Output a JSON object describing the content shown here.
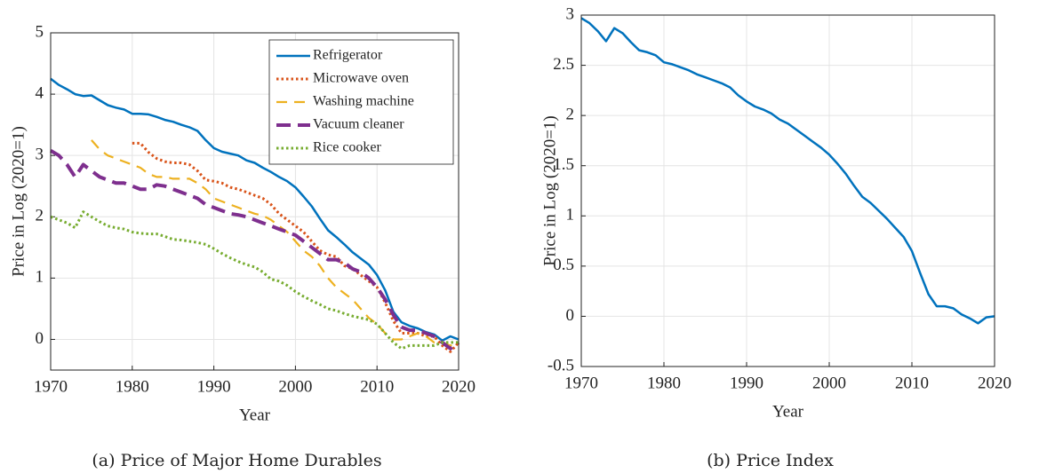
{
  "chart_data": [
    {
      "type": "line",
      "xlabel": "Year",
      "ylabel": "Price in Log (2020=1)",
      "caption": "(a) Price of Major Home Durables",
      "x": [
        1970,
        1971,
        1972,
        1973,
        1974,
        1975,
        1976,
        1977,
        1978,
        1979,
        1980,
        1981,
        1982,
        1983,
        1984,
        1985,
        1986,
        1987,
        1988,
        1989,
        1990,
        1991,
        1992,
        1993,
        1994,
        1995,
        1996,
        1997,
        1998,
        1999,
        2000,
        2001,
        2002,
        2003,
        2004,
        2005,
        2006,
        2007,
        2008,
        2009,
        2010,
        2011,
        2012,
        2013,
        2014,
        2015,
        2016,
        2017,
        2018,
        2019,
        2020
      ],
      "xlim": [
        1970,
        2020
      ],
      "xticks": [
        1970,
        1980,
        1990,
        2000,
        2010,
        2020
      ],
      "ylim": [
        -0.5,
        5
      ],
      "yticks": [
        0,
        1,
        2,
        3,
        4,
        5
      ],
      "grid": true,
      "legend": "upper right",
      "series": [
        {
          "name": "Refrigerator",
          "color": "#0072BD",
          "line_style": "solid",
          "values": [
            4.25,
            4.15,
            4.08,
            4.0,
            3.97,
            3.98,
            3.9,
            3.82,
            3.78,
            3.75,
            3.68,
            3.68,
            3.67,
            3.63,
            3.58,
            3.55,
            3.5,
            3.46,
            3.4,
            3.25,
            3.12,
            3.06,
            3.03,
            3.0,
            2.92,
            2.88,
            2.8,
            2.73,
            2.65,
            2.58,
            2.48,
            2.33,
            2.17,
            1.97,
            1.78,
            1.67,
            1.55,
            1.42,
            1.32,
            1.22,
            1.05,
            0.8,
            0.45,
            0.28,
            0.22,
            0.18,
            0.12,
            0.08,
            -0.02,
            0.05,
            0.0
          ]
        },
        {
          "name": "Microwave oven",
          "color": "#D95319",
          "line_style": "dotted",
          "values": [
            null,
            null,
            null,
            null,
            null,
            null,
            null,
            null,
            null,
            null,
            3.2,
            3.2,
            3.05,
            2.95,
            2.9,
            2.88,
            2.88,
            2.85,
            2.75,
            2.6,
            2.58,
            2.55,
            2.48,
            2.45,
            2.4,
            2.35,
            2.3,
            2.2,
            2.05,
            1.95,
            1.85,
            1.75,
            1.6,
            1.45,
            1.38,
            1.35,
            1.2,
            1.15,
            1.05,
            0.95,
            0.85,
            0.6,
            0.3,
            0.1,
            0.1,
            0.1,
            0.05,
            0.05,
            -0.1,
            -0.2,
            -0.05
          ]
        },
        {
          "name": "Washing machine",
          "color": "#EDB120",
          "line_style": "dashed",
          "values": [
            null,
            null,
            null,
            null,
            null,
            3.25,
            3.1,
            3.0,
            2.95,
            2.9,
            2.85,
            2.8,
            2.7,
            2.65,
            2.65,
            2.62,
            2.62,
            2.62,
            2.55,
            2.45,
            2.3,
            2.25,
            2.2,
            2.15,
            2.1,
            2.05,
            2.02,
            1.95,
            1.85,
            1.75,
            1.6,
            1.45,
            1.35,
            1.2,
            1.0,
            0.85,
            0.75,
            0.65,
            0.5,
            0.35,
            0.25,
            0.1,
            0.0,
            0.0,
            0.05,
            0.1,
            0.05,
            -0.05,
            -0.05,
            -0.1,
            -0.05
          ]
        },
        {
          "name": "Vacuum cleaner",
          "color": "#7E2F8E",
          "line_style": "longdash",
          "values": [
            3.08,
            3.0,
            2.85,
            2.65,
            2.85,
            2.75,
            2.65,
            2.6,
            2.55,
            2.55,
            2.5,
            2.45,
            2.45,
            2.52,
            2.5,
            2.45,
            2.4,
            2.35,
            2.3,
            2.2,
            2.15,
            2.1,
            2.05,
            2.03,
            2.0,
            1.95,
            1.9,
            1.85,
            1.8,
            1.75,
            1.7,
            1.6,
            1.5,
            1.4,
            1.3,
            1.3,
            1.25,
            1.15,
            1.1,
            1.0,
            0.85,
            0.65,
            0.4,
            0.2,
            0.15,
            0.15,
            0.1,
            0.05,
            -0.05,
            -0.15,
            -0.05
          ]
        },
        {
          "name": "Rice cooker",
          "color": "#77AC30",
          "line_style": "dotted",
          "values": [
            2.0,
            1.95,
            1.9,
            1.82,
            2.08,
            2.0,
            1.92,
            1.85,
            1.82,
            1.8,
            1.75,
            1.73,
            1.72,
            1.72,
            1.68,
            1.63,
            1.62,
            1.6,
            1.58,
            1.55,
            1.48,
            1.4,
            1.33,
            1.27,
            1.22,
            1.18,
            1.1,
            0.98,
            0.95,
            0.88,
            0.78,
            0.7,
            0.63,
            0.57,
            0.5,
            0.47,
            0.42,
            0.38,
            0.35,
            0.32,
            0.25,
            0.1,
            -0.05,
            -0.15,
            -0.1,
            -0.1,
            -0.1,
            -0.1,
            -0.05,
            -0.05,
            -0.05
          ]
        }
      ]
    },
    {
      "type": "line",
      "xlabel": "Year",
      "ylabel": "Price in Log (2020=1)",
      "caption": "(b) Price Index",
      "x": [
        1970,
        1971,
        1972,
        1973,
        1974,
        1975,
        1976,
        1977,
        1978,
        1979,
        1980,
        1981,
        1982,
        1983,
        1984,
        1985,
        1986,
        1987,
        1988,
        1989,
        1990,
        1991,
        1992,
        1993,
        1994,
        1995,
        1996,
        1997,
        1998,
        1999,
        2000,
        2001,
        2002,
        2003,
        2004,
        2005,
        2006,
        2007,
        2008,
        2009,
        2010,
        2011,
        2012,
        2013,
        2014,
        2015,
        2016,
        2017,
        2018,
        2019,
        2020
      ],
      "xlim": [
        1970,
        2020
      ],
      "xticks": [
        1970,
        1980,
        1990,
        2000,
        2010,
        2020
      ],
      "ylim": [
        -0.5,
        3
      ],
      "yticks": [
        -0.5,
        0,
        0.5,
        1,
        1.5,
        2,
        2.5,
        3
      ],
      "grid": true,
      "color": "#0072BD",
      "line_style": "solid",
      "values": [
        2.97,
        2.92,
        2.84,
        2.74,
        2.87,
        2.82,
        2.73,
        2.65,
        2.63,
        2.6,
        2.53,
        2.51,
        2.48,
        2.45,
        2.41,
        2.38,
        2.35,
        2.32,
        2.28,
        2.2,
        2.14,
        2.09,
        2.06,
        2.02,
        1.96,
        1.92,
        1.86,
        1.8,
        1.74,
        1.68,
        1.61,
        1.52,
        1.42,
        1.3,
        1.19,
        1.13,
        1.05,
        0.97,
        0.88,
        0.79,
        0.65,
        0.43,
        0.22,
        0.1,
        0.1,
        0.08,
        0.02,
        -0.02,
        -0.07,
        -0.01,
        0.0
      ]
    }
  ]
}
